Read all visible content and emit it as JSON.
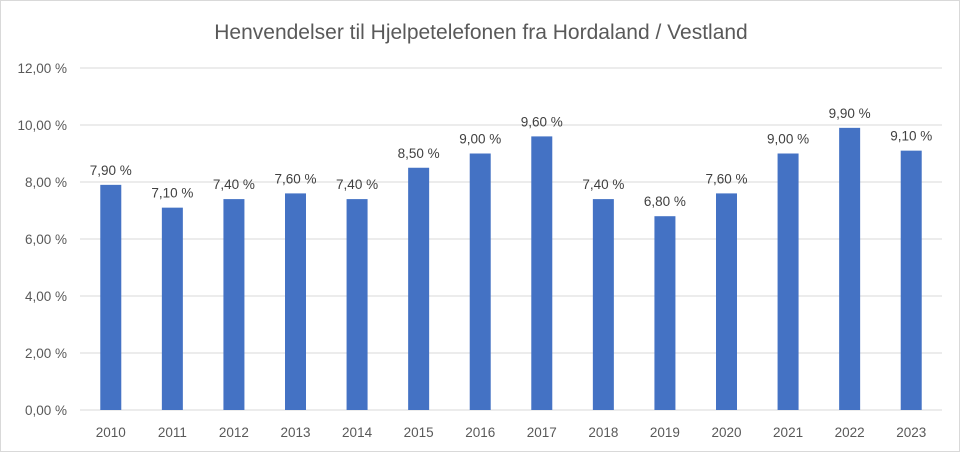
{
  "chart_data": {
    "type": "bar",
    "title": "Henvendelser til Hjelpetelefonen fra Hordaland / Vestland",
    "categories": [
      "2010",
      "2011",
      "2012",
      "2013",
      "2014",
      "2015",
      "2016",
      "2017",
      "2018",
      "2019",
      "2020",
      "2021",
      "2022",
      "2023"
    ],
    "values": [
      7.9,
      7.1,
      7.4,
      7.6,
      7.4,
      8.5,
      9.0,
      9.6,
      7.4,
      6.8,
      7.6,
      9.0,
      9.9,
      9.1
    ],
    "data_labels": [
      "7,90 %",
      "7,10 %",
      "7,40 %",
      "7,60 %",
      "7,40 %",
      "8,50 %",
      "9,00 %",
      "9,60 %",
      "7,40 %",
      "6,80 %",
      "7,60 %",
      "9,00 %",
      "9,90 %",
      "9,10 %"
    ],
    "yticks": [
      0,
      2,
      4,
      6,
      8,
      10,
      12
    ],
    "ytick_labels": [
      "0,00 %",
      "2,00 %",
      "4,00 %",
      "6,00 %",
      "8,00 %",
      "10,00 %",
      "12,00 %"
    ],
    "ylim": [
      0,
      12
    ],
    "grid": true,
    "legend": "none",
    "bar_color": "#4472c4"
  }
}
